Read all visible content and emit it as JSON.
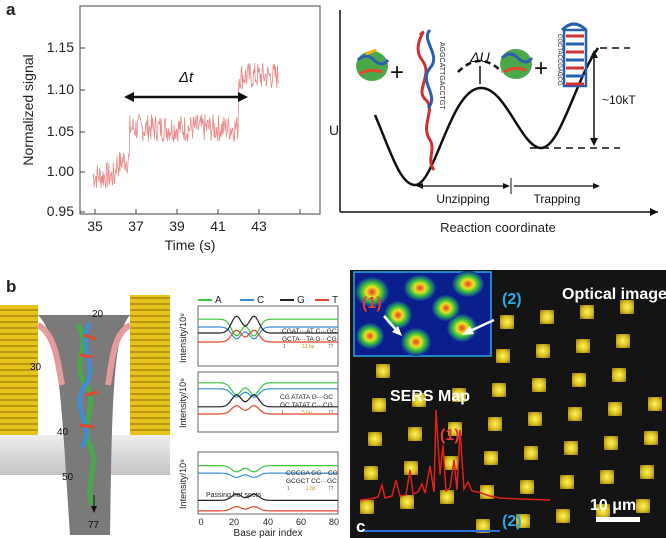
{
  "figure": {
    "panel_a": {
      "letter": "a",
      "trace": {
        "ylabel": "Normalized signal",
        "xlabel": "Time (s)",
        "annotation": "Δt",
        "y_ticks": [
          "0.95",
          "1.00",
          "1.05",
          "1.10",
          "1.15"
        ],
        "x_ticks": [
          "35",
          "37",
          "39",
          "41",
          "43"
        ]
      },
      "energy": {
        "ylabel": "U",
        "xlabel": "Reaction coordinate",
        "barrier_label": "ΔU",
        "depth_label": "~10kT",
        "region_unzipping": "Unzipping",
        "region_trapping": "Trapping",
        "plus_sign": "+",
        "dna_seq_left": "AGGCATTGACCTGT",
        "dna_seq_right": "CGCTACCGAGCG"
      }
    },
    "panel_b": {
      "letter": "b",
      "pore_labels": [
        "20",
        "30",
        "40",
        "50",
        "77"
      ],
      "legend": [
        {
          "label": "A",
          "color": "#3cc43c"
        },
        {
          "label": "C",
          "color": "#3a8fd8"
        },
        {
          "label": "G",
          "color": "#222222"
        },
        {
          "label": "T",
          "color": "#e2462c"
        }
      ],
      "ylabel": "Intensity/10⁹",
      "xlabel": "Base pair index",
      "x_ticks": [
        "0",
        "20",
        "40",
        "60",
        "80"
      ],
      "subplots": [
        {
          "seq_top": "CGAT···AT C···GC",
          "seq_bottom": "GCTA···TA G···CG",
          "index_start": "1",
          "index_end": "77",
          "bp": "12 bp"
        },
        {
          "seq_top": "CG ATATA G···GC",
          "seq_bottom": "GC TATAT C···CG",
          "index_start": "1",
          "index_end": "77",
          "bp": "5 bp"
        },
        {
          "seq_top": "CGCGA GG···CG",
          "seq_bottom": "GCGCT CC···GC",
          "index_start": "1",
          "index_end": "77",
          "bp": "1 bp",
          "note": "Passing hot spots"
        }
      ]
    },
    "panel_c": {
      "letter": "c",
      "optical_label": "Optical image",
      "sers_label": "SERS Map",
      "marker_1": "(1)",
      "marker_2": "(2)",
      "scalebar": "10 μm",
      "colors": {
        "marker_1": "#e23b3b",
        "marker_2": "#2aa7e8"
      }
    }
  }
}
